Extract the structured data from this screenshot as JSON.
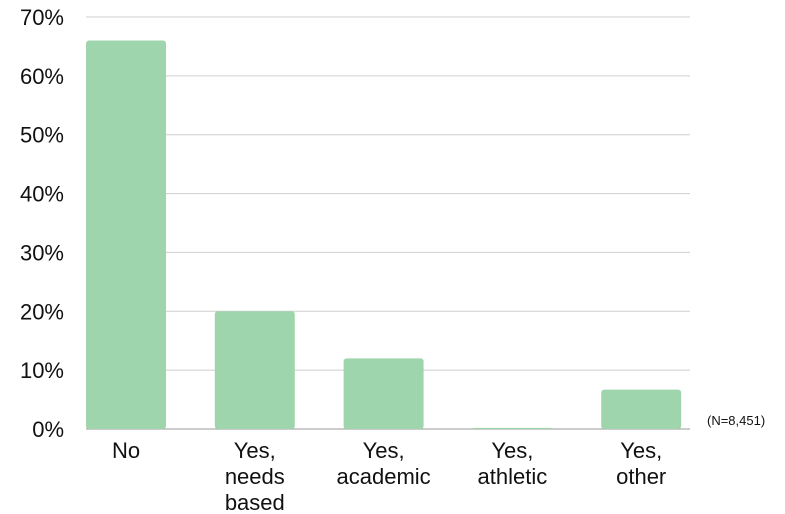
{
  "chart_data": {
    "type": "bar",
    "title": "",
    "xlabel": "",
    "ylabel": "",
    "categories": [
      [
        "No"
      ],
      [
        "Yes,",
        "needs",
        "based"
      ],
      [
        "Yes,",
        "academic"
      ],
      [
        "Yes,",
        "athletic"
      ],
      [
        "Yes,",
        "other"
      ]
    ],
    "values": [
      66,
      20,
      12,
      0.2,
      6.7
    ],
    "ylim": [
      0,
      70
    ],
    "yticks": [
      "0%",
      "10%",
      "20%",
      "30%",
      "40%",
      "50%",
      "60%",
      "70%"
    ],
    "grid": true,
    "bar_color": "#9fd5ad",
    "note": "(N=8,451)"
  }
}
